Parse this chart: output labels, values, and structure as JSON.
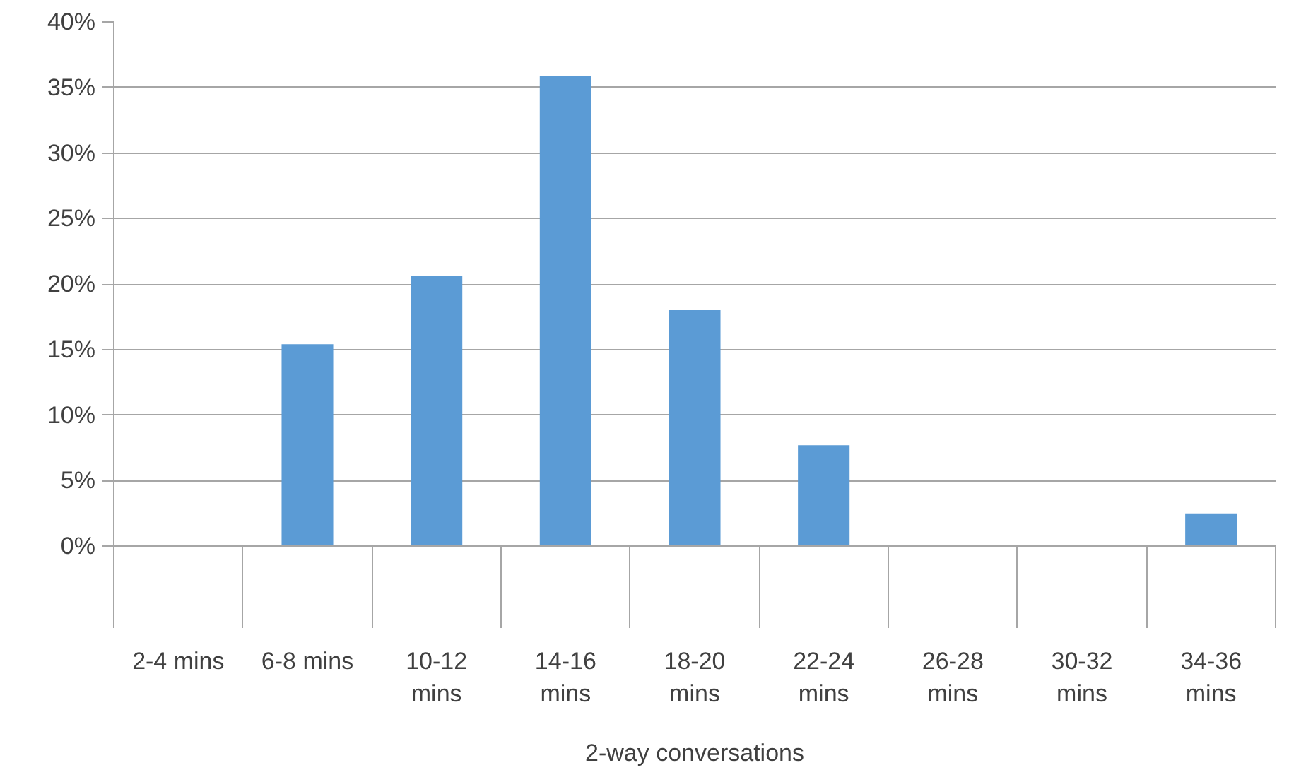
{
  "chart_data": {
    "type": "bar",
    "xlabel": "2-way conversations",
    "categories": [
      "2-4 mins",
      "6-8 mins",
      "10-12 mins",
      "14-16 mins",
      "18-20 mins",
      "22-24 mins",
      "26-28 mins",
      "30-32 mins",
      "34-36 mins"
    ],
    "values": [
      0,
      15.4,
      20.6,
      35.9,
      18.0,
      7.7,
      0,
      0,
      2.5
    ],
    "color": "#5b9bd5",
    "ylim": [
      0,
      40
    ],
    "yticks": [
      {
        "value": 0,
        "label": "0%"
      },
      {
        "value": 5,
        "label": "5%"
      },
      {
        "value": 10,
        "label": "10%"
      },
      {
        "value": 15,
        "label": "15%"
      },
      {
        "value": 20,
        "label": "20%"
      },
      {
        "value": 25,
        "label": "25%"
      },
      {
        "value": 30,
        "label": "30%"
      },
      {
        "value": 35,
        "label": "35%"
      },
      {
        "value": 40,
        "label": "40%"
      }
    ],
    "grid": "y"
  }
}
